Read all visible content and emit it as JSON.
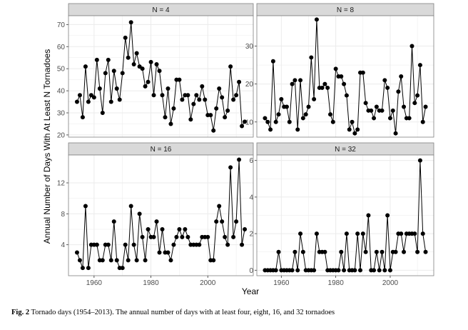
{
  "chart_data": {
    "type": "line",
    "xlabel": "Year",
    "ylabel": "Annual Number of Days With At Least N Tornadoes",
    "x_ticks": [
      1960,
      1980,
      2000
    ],
    "xlim": [
      1951,
      2016
    ],
    "grid": true,
    "markers": "filled-circle",
    "line_color": "#000000",
    "strip_fill": "#d9d9d9",
    "panel_border": "#7f7f7f",
    "grid_color": "#ebebeb",
    "x": [
      1954,
      1955,
      1956,
      1957,
      1958,
      1959,
      1960,
      1961,
      1962,
      1963,
      1964,
      1965,
      1966,
      1967,
      1968,
      1969,
      1970,
      1971,
      1972,
      1973,
      1974,
      1975,
      1976,
      1977,
      1978,
      1979,
      1980,
      1981,
      1982,
      1983,
      1984,
      1985,
      1986,
      1987,
      1988,
      1989,
      1990,
      1991,
      1992,
      1993,
      1994,
      1995,
      1996,
      1997,
      1998,
      1999,
      2000,
      2001,
      2002,
      2003,
      2004,
      2005,
      2006,
      2007,
      2008,
      2009,
      2010,
      2011,
      2012,
      2013
    ],
    "panels": [
      {
        "label": "N = 4",
        "ylim": [
          19,
          74
        ],
        "y_ticks": [
          20,
          30,
          40,
          50,
          60,
          70
        ],
        "values": [
          35,
          38,
          28,
          51,
          35,
          38,
          37,
          54,
          41,
          30,
          48,
          54,
          35,
          49,
          41,
          36,
          48,
          64,
          55,
          71,
          52,
          57,
          51,
          50,
          42,
          44,
          53,
          38,
          52,
          49,
          38,
          28,
          41,
          25,
          32,
          45,
          45,
          36,
          38,
          38,
          27,
          34,
          38,
          36,
          42,
          36,
          29,
          29,
          22,
          32,
          41,
          37,
          28,
          31,
          51,
          36,
          38,
          44,
          24,
          26
        ]
      },
      {
        "label": "N = 8",
        "ylim": [
          6,
          38
        ],
        "y_ticks": [
          10,
          20,
          30
        ],
        "values": [
          11,
          10,
          8,
          26,
          10,
          12,
          16,
          14,
          14,
          10,
          20,
          21,
          8,
          21,
          11,
          12,
          14,
          27,
          16,
          37,
          19,
          19,
          20,
          19,
          12,
          10,
          24,
          22,
          22,
          20,
          17,
          8,
          10,
          7,
          8,
          23,
          23,
          15,
          13,
          13,
          11,
          14,
          13,
          13,
          21,
          19,
          11,
          13,
          7,
          18,
          22,
          14,
          11,
          11,
          30,
          15,
          17,
          25,
          10,
          14
        ]
      },
      {
        "label": "N = 16",
        "ylim": [
          0,
          15.6
        ],
        "y_ticks": [
          4,
          8,
          12
        ],
        "values": [
          3,
          2,
          1,
          9,
          1,
          4,
          4,
          4,
          2,
          2,
          4,
          4,
          2,
          7,
          2,
          1,
          1,
          4,
          2,
          9,
          4,
          2,
          8,
          5,
          2,
          6,
          5,
          5,
          7,
          3,
          6,
          3,
          3,
          2,
          4,
          5,
          6,
          5,
          6,
          5,
          4,
          4,
          4,
          4,
          5,
          5,
          5,
          2,
          2,
          7,
          9,
          7,
          5,
          4,
          14,
          5,
          7,
          15,
          4,
          6
        ]
      },
      {
        "label": "N = 32",
        "ylim": [
          -0.3,
          6.3
        ],
        "y_ticks": [
          0,
          2,
          4,
          6
        ],
        "values": [
          0,
          0,
          0,
          0,
          0,
          1,
          0,
          0,
          0,
          0,
          0,
          1,
          0,
          2,
          1,
          0,
          0,
          0,
          0,
          2,
          1,
          1,
          1,
          0,
          0,
          0,
          0,
          0,
          1,
          0,
          2,
          0,
          0,
          0,
          2,
          0,
          2,
          1,
          3,
          0,
          0,
          1,
          0,
          1,
          0,
          3,
          0,
          1,
          1,
          2,
          2,
          1,
          2,
          2,
          2,
          2,
          1,
          6,
          2,
          1
        ]
      }
    ]
  },
  "caption": {
    "label": "Fig. 2",
    "text": "Tornado days (1954–2013). The annual number of days with at least four, eight, 16, and 32 tornadoes"
  }
}
